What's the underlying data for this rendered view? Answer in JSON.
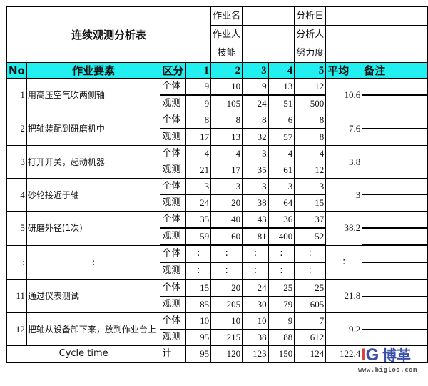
{
  "header": {
    "title": "连续观测分析表",
    "fields": [
      {
        "label": "作业名",
        "value": ""
      },
      {
        "label": "作业人",
        "value": ""
      },
      {
        "label": "技能",
        "value": ""
      }
    ],
    "fields_right": [
      {
        "label": "分析日",
        "value": ""
      },
      {
        "label": "分析人",
        "value": ""
      },
      {
        "label": "努力度",
        "value": ""
      }
    ]
  },
  "columns": [
    "No",
    "作业要素",
    "区分",
    "1",
    "2",
    "3",
    "4",
    "5",
    "平均",
    "备注"
  ],
  "header_color": "#22f0f0",
  "rows": [
    {
      "no": "1",
      "element": "用高压空气吹两侧轴",
      "individual": [
        "9",
        "10",
        "9",
        "13",
        "12"
      ],
      "observed": [
        "9",
        "105",
        "24",
        "51",
        "500"
      ],
      "avg": "10.6"
    },
    {
      "no": "2",
      "element": "把轴装配到研磨机中",
      "individual": [
        "8",
        "8",
        "8",
        "6",
        "8"
      ],
      "observed": [
        "17",
        "13",
        "32",
        "57",
        "8"
      ],
      "avg": "7.6"
    },
    {
      "no": "3",
      "element": "打开开关，起动机器",
      "individual": [
        "4",
        "4",
        "3",
        "4",
        "4"
      ],
      "observed": [
        "21",
        "17",
        "35",
        "61",
        "12"
      ],
      "avg": "3.8"
    },
    {
      "no": "4",
      "element": "砂轮接近于轴",
      "individual": [
        "3",
        "3",
        "3",
        "3",
        "3"
      ],
      "observed": [
        "24",
        "20",
        "38",
        "64",
        "15"
      ],
      "avg": "3"
    },
    {
      "no": "5",
      "element": "研磨外径(1次)",
      "individual": [
        "35",
        "40",
        "43",
        "36",
        "37"
      ],
      "observed": [
        "59",
        "60",
        "81",
        "400",
        "52"
      ],
      "avg": "38.2"
    },
    {
      "no": ":",
      "element": ":",
      "individual": [
        ":",
        ":",
        ":",
        ":",
        ":"
      ],
      "observed": [
        ":",
        ":",
        ":",
        ":",
        ":"
      ],
      "avg": ":"
    },
    {
      "no": "11",
      "element": "通过仪表测试",
      "individual": [
        "15",
        "20",
        "24",
        "25",
        "25"
      ],
      "observed": [
        "85",
        "205",
        "30",
        "79",
        "605"
      ],
      "avg": "21.8"
    },
    {
      "no": "12",
      "element": "把轴从设备卸下来，放到作业台上",
      "individual": [
        "10",
        "10",
        "10",
        "9",
        "7"
      ],
      "observed": [
        "95",
        "215",
        "38",
        "88",
        "612"
      ],
      "avg": "9.2"
    }
  ],
  "sub_labels": {
    "individual": "个体",
    "observed": "观测"
  },
  "footer": {
    "label": "Cycle time",
    "kind": "计",
    "values": [
      "95",
      "120",
      "123",
      "150",
      "124"
    ],
    "avg": "122.4"
  },
  "logo": {
    "mark": "IG",
    "name": "博革",
    "url": "www.bigloo.com"
  }
}
